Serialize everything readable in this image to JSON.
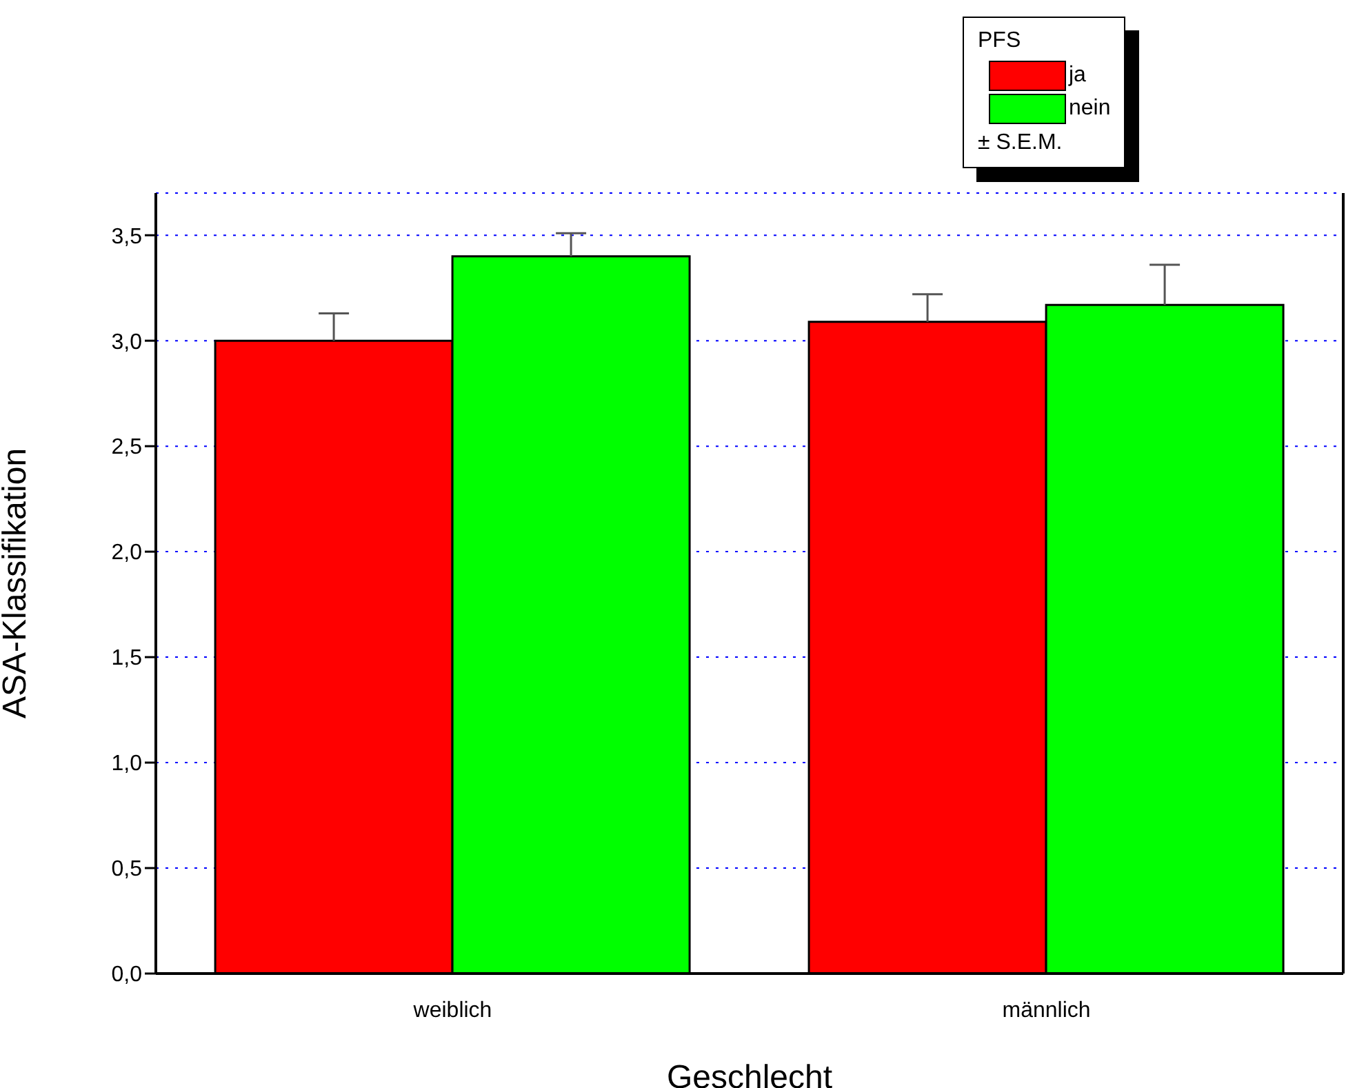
{
  "chart_data": {
    "type": "bar",
    "xlabel": "Geschlecht",
    "ylabel": "ASA-Klassifikation",
    "legend_title": "PFS",
    "categories": [
      "weiblich",
      "männlich"
    ],
    "series": [
      {
        "name": "ja",
        "color": "#ff0000",
        "values": [
          3.0,
          3.09
        ],
        "errors": [
          0.13,
          0.13
        ]
      },
      {
        "name": "nein",
        "color": "#00ff00",
        "values": [
          3.4,
          3.17
        ],
        "errors": [
          0.11,
          0.19
        ]
      }
    ],
    "ylim": [
      0,
      3.7
    ],
    "yticks": [
      {
        "value": 0,
        "label": "0,0"
      },
      {
        "value": 0.5,
        "label": "0,5"
      },
      {
        "value": 1,
        "label": "1,0"
      },
      {
        "value": 1.5,
        "label": "1,5"
      },
      {
        "value": 2,
        "label": "2,0"
      },
      {
        "value": 2.5,
        "label": "2,5"
      },
      {
        "value": 3,
        "label": "3,0"
      },
      {
        "value": 3.5,
        "label": "3,5"
      }
    ],
    "grid": "y",
    "legend": "top right",
    "annotations": [
      "± S.E.M."
    ]
  }
}
